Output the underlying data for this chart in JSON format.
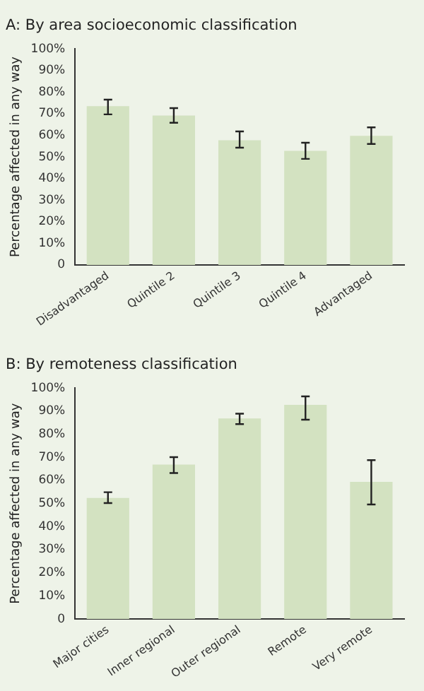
{
  "chart_data": [
    {
      "type": "bar",
      "title": "A: By area socioeconomic classification",
      "ylabel": "Percentage affected in any way",
      "categories": [
        "Disadvantaged",
        "Quintile 2",
        "Quintile 3",
        "Quintile 4",
        "Advantaged"
      ],
      "values": [
        73.5,
        69.2,
        57.7,
        52.8,
        59.8
      ],
      "color": "#d3e2c1",
      "errors": [
        [
          69.7,
          76.5
        ],
        [
          65.8,
          72.6
        ],
        [
          54.3,
          61.8
        ],
        [
          49.1,
          56.6
        ],
        [
          56,
          63.7
        ]
      ],
      "ylim": [
        0,
        100
      ],
      "yticks": [
        {
          "value": 0,
          "label": "0"
        },
        {
          "value": 10,
          "label": "10%"
        },
        {
          "value": 20,
          "label": "20%"
        },
        {
          "value": 30,
          "label": "30%"
        },
        {
          "value": 40,
          "label": "40%"
        },
        {
          "value": 50,
          "label": "50%"
        },
        {
          "value": 60,
          "label": "60%"
        },
        {
          "value": 70,
          "label": "70%"
        },
        {
          "value": 80,
          "label": "80%"
        },
        {
          "value": 90,
          "label": "90%"
        },
        {
          "value": 100,
          "label": "100%"
        }
      ],
      "grid": false,
      "legend": false
    },
    {
      "type": "bar",
      "title": "B: By remoteness classification",
      "ylabel": "Percentage affected in any way",
      "categories": [
        "Major cities",
        "Inner regional",
        "Outer regional",
        "Remote",
        "Very remote"
      ],
      "values": [
        52.4,
        66.9,
        86.8,
        92.7,
        59.4
      ],
      "color": "#d3e2c1",
      "errors": [
        [
          50.2,
          54.9
        ],
        [
          63.2,
          70.1
        ],
        [
          84.4,
          88.9
        ],
        [
          86.3,
          96.4
        ],
        [
          49.6,
          68.8
        ]
      ],
      "ylim": [
        0,
        100
      ],
      "yticks": [
        {
          "value": 0,
          "label": "0"
        },
        {
          "value": 10,
          "label": "10%"
        },
        {
          "value": 20,
          "label": "20%"
        },
        {
          "value": 30,
          "label": "30%"
        },
        {
          "value": 40,
          "label": "40%"
        },
        {
          "value": 50,
          "label": "50%"
        },
        {
          "value": 60,
          "label": "60%"
        },
        {
          "value": 70,
          "label": "70%"
        },
        {
          "value": 80,
          "label": "80%"
        },
        {
          "value": 90,
          "label": "90%"
        },
        {
          "value": 100,
          "label": "100%"
        }
      ],
      "grid": false,
      "legend": false
    }
  ]
}
